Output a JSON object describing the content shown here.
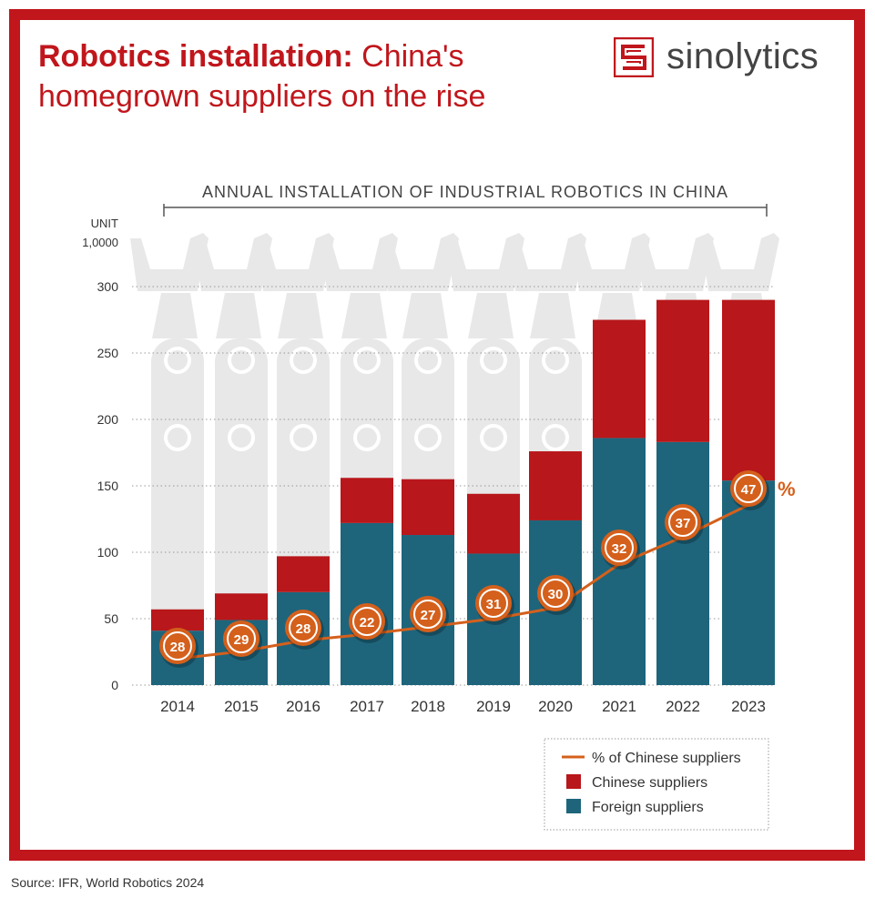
{
  "header": {
    "title_bold": "Robotics installation:",
    "title_rest": "China's",
    "title_line2": "homegrown suppliers on the rise",
    "logo_text": "sinolytics"
  },
  "source": "Source: IFR, World Robotics 2024",
  "colors": {
    "frame": "#c0161c",
    "chinese": "#b8171b",
    "foreign": "#1e657c",
    "line": "#d4601c",
    "robot": "#e8e8e8"
  },
  "chart_data": {
    "type": "bar",
    "stacked": true,
    "title": "ANNUAL INSTALLATION OF INDUSTRIAL ROBOTICS IN CHINA",
    "ylabel": "UNIT",
    "ylabel2": "1,0000",
    "ylim": [
      0,
      300
    ],
    "yticks": [
      "0",
      "50",
      "100",
      "150",
      "200",
      "250",
      "300"
    ],
    "grid": true,
    "categories": [
      "2014",
      "2015",
      "2016",
      "2017",
      "2018",
      "2019",
      "2020",
      "2021",
      "2022",
      "2023"
    ],
    "series": [
      {
        "name": "Foreign suppliers",
        "values": [
          41,
          49,
          70,
          122,
          113,
          99,
          124,
          186,
          183,
          154
        ]
      },
      {
        "name": "Chinese suppliers",
        "values": [
          16,
          20,
          27,
          34,
          42,
          45,
          52,
          89,
          107,
          136
        ]
      }
    ],
    "line_series": {
      "name": "% of Chinese suppliers",
      "values": [
        28,
        29,
        28,
        22,
        27,
        31,
        30,
        32,
        37,
        47
      ],
      "unit_label": "%"
    },
    "legend": {
      "position": "bottom-right",
      "items": [
        "% of Chinese suppliers",
        "Chinese suppliers",
        "Foreign suppliers"
      ]
    }
  }
}
